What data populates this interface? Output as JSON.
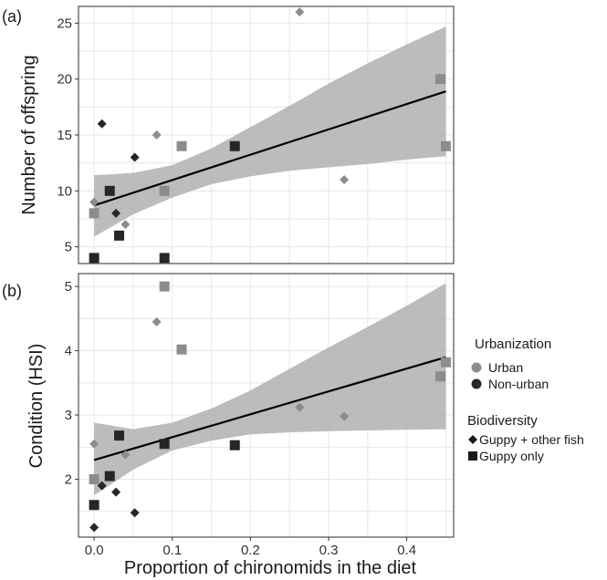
{
  "chart_data": [
    {
      "panel": "(a)",
      "type": "scatter",
      "title": "",
      "xlabel": "",
      "ylabel": "Number of offspring",
      "xlim": [
        -0.02,
        0.46
      ],
      "ylim": [
        3.5,
        26.5
      ],
      "xticks": [
        0,
        0.1,
        0.2,
        0.3,
        0.4
      ],
      "yticks": [
        5,
        10,
        15,
        20,
        25
      ],
      "ytick_labels": [
        "5",
        "10",
        "15",
        "20",
        "25"
      ],
      "grid": true,
      "points": [
        {
          "x": 0.0,
          "y": 9,
          "shape": "diamond",
          "urban": "Urban"
        },
        {
          "x": 0.0,
          "y": 8,
          "shape": "square",
          "urban": "Urban"
        },
        {
          "x": 0.0,
          "y": 4,
          "shape": "square",
          "urban": "Non-urban"
        },
        {
          "x": 0.01,
          "y": 16,
          "shape": "diamond",
          "urban": "Non-urban"
        },
        {
          "x": 0.02,
          "y": 10,
          "shape": "square",
          "urban": "Non-urban"
        },
        {
          "x": 0.028,
          "y": 8,
          "shape": "diamond",
          "urban": "Non-urban"
        },
        {
          "x": 0.032,
          "y": 6,
          "shape": "square",
          "urban": "Non-urban"
        },
        {
          "x": 0.04,
          "y": 7,
          "shape": "diamond",
          "urban": "Urban"
        },
        {
          "x": 0.052,
          "y": 13,
          "shape": "diamond",
          "urban": "Non-urban"
        },
        {
          "x": 0.08,
          "y": 15,
          "shape": "diamond",
          "urban": "Urban"
        },
        {
          "x": 0.09,
          "y": 10,
          "shape": "square",
          "urban": "Urban"
        },
        {
          "x": 0.09,
          "y": 4,
          "shape": "square",
          "urban": "Non-urban"
        },
        {
          "x": 0.112,
          "y": 14,
          "shape": "square",
          "urban": "Urban"
        },
        {
          "x": 0.18,
          "y": 14,
          "shape": "square",
          "urban": "Non-urban"
        },
        {
          "x": 0.263,
          "y": 26,
          "shape": "diamond",
          "urban": "Urban"
        },
        {
          "x": 0.32,
          "y": 11,
          "shape": "diamond",
          "urban": "Urban"
        },
        {
          "x": 0.443,
          "y": 20,
          "shape": "square",
          "urban": "Urban"
        },
        {
          "x": 0.45,
          "y": 14,
          "shape": "square",
          "urban": "Urban"
        }
      ],
      "fit_line": {
        "x": [
          0.0,
          0.45
        ],
        "y": [
          8.7,
          18.9
        ]
      },
      "confidence_band": {
        "x": [
          0.0,
          0.05,
          0.1,
          0.15,
          0.2,
          0.25,
          0.3,
          0.35,
          0.4,
          0.45
        ],
        "lower": [
          5.9,
          7.9,
          9.4,
          10.6,
          11.3,
          11.8,
          12.1,
          12.4,
          12.8,
          13.1
        ],
        "upper": [
          11.4,
          11.6,
          12.3,
          13.8,
          15.7,
          17.6,
          19.6,
          21.4,
          23.1,
          24.7
        ]
      }
    },
    {
      "panel": "(b)",
      "type": "scatter",
      "title": "",
      "xlabel": "Proportion of chironomids in the diet",
      "ylabel": "Condition (HSI)",
      "xlim": [
        -0.02,
        0.46
      ],
      "ylim": [
        1.1,
        5.2
      ],
      "xticks": [
        0,
        0.1,
        0.2,
        0.3,
        0.4
      ],
      "xtick_labels": [
        "0.0",
        "0.1",
        "0.2",
        "0.3",
        "0.4"
      ],
      "yticks": [
        2,
        3,
        4,
        5
      ],
      "ytick_labels": [
        "2",
        "3",
        "4",
        "5"
      ],
      "grid": true,
      "points": [
        {
          "x": 0.0,
          "y": 2.55,
          "shape": "diamond",
          "urban": "Urban"
        },
        {
          "x": 0.0,
          "y": 2.0,
          "shape": "square",
          "urban": "Urban"
        },
        {
          "x": 0.0,
          "y": 1.6,
          "shape": "square",
          "urban": "Non-urban"
        },
        {
          "x": 0.0,
          "y": 1.25,
          "shape": "diamond",
          "urban": "Non-urban"
        },
        {
          "x": 0.01,
          "y": 1.9,
          "shape": "diamond",
          "urban": "Non-urban"
        },
        {
          "x": 0.02,
          "y": 2.05,
          "shape": "square",
          "urban": "Non-urban"
        },
        {
          "x": 0.028,
          "y": 1.8,
          "shape": "diamond",
          "urban": "Non-urban"
        },
        {
          "x": 0.032,
          "y": 2.68,
          "shape": "square",
          "urban": "Non-urban"
        },
        {
          "x": 0.04,
          "y": 2.38,
          "shape": "diamond",
          "urban": "Urban"
        },
        {
          "x": 0.052,
          "y": 1.48,
          "shape": "diamond",
          "urban": "Non-urban"
        },
        {
          "x": 0.08,
          "y": 4.45,
          "shape": "diamond",
          "urban": "Urban"
        },
        {
          "x": 0.09,
          "y": 5.0,
          "shape": "square",
          "urban": "Urban"
        },
        {
          "x": 0.09,
          "y": 2.55,
          "shape": "square",
          "urban": "Non-urban"
        },
        {
          "x": 0.112,
          "y": 4.02,
          "shape": "square",
          "urban": "Urban"
        },
        {
          "x": 0.18,
          "y": 2.53,
          "shape": "square",
          "urban": "Non-urban"
        },
        {
          "x": 0.263,
          "y": 3.12,
          "shape": "diamond",
          "urban": "Urban"
        },
        {
          "x": 0.32,
          "y": 2.98,
          "shape": "diamond",
          "urban": "Urban"
        },
        {
          "x": 0.443,
          "y": 3.6,
          "shape": "square",
          "urban": "Urban"
        },
        {
          "x": 0.45,
          "y": 3.82,
          "shape": "square",
          "urban": "Urban"
        }
      ],
      "fit_line": {
        "x": [
          0.0,
          0.45
        ],
        "y": [
          2.3,
          3.9
        ]
      },
      "confidence_band": {
        "x": [
          0.0,
          0.05,
          0.1,
          0.15,
          0.2,
          0.25,
          0.3,
          0.35,
          0.4,
          0.45
        ],
        "lower": [
          1.75,
          2.15,
          2.45,
          2.6,
          2.7,
          2.73,
          2.75,
          2.76,
          2.77,
          2.78
        ],
        "upper": [
          2.88,
          2.78,
          2.88,
          3.1,
          3.38,
          3.72,
          4.05,
          4.37,
          4.7,
          5.05
        ]
      }
    }
  ],
  "legend": {
    "urbanization_title": "Urbanization",
    "urbanization_items": [
      {
        "label": "Urban",
        "color": "#8c8c8c"
      },
      {
        "label": "Non-urban",
        "color": "#262626"
      }
    ],
    "biodiversity_title": "Biodiversity",
    "biodiversity_items": [
      {
        "label": "Guppy + other fish",
        "shape": "diamond"
      },
      {
        "label": "Guppy only",
        "shape": "square"
      }
    ]
  },
  "colors": {
    "urban": "#8c8c8c",
    "non_urban": "#262626",
    "band": "#b0b0b0",
    "line": "#000000",
    "grid": "#e6e6e6",
    "border": "#4d4d4d"
  }
}
